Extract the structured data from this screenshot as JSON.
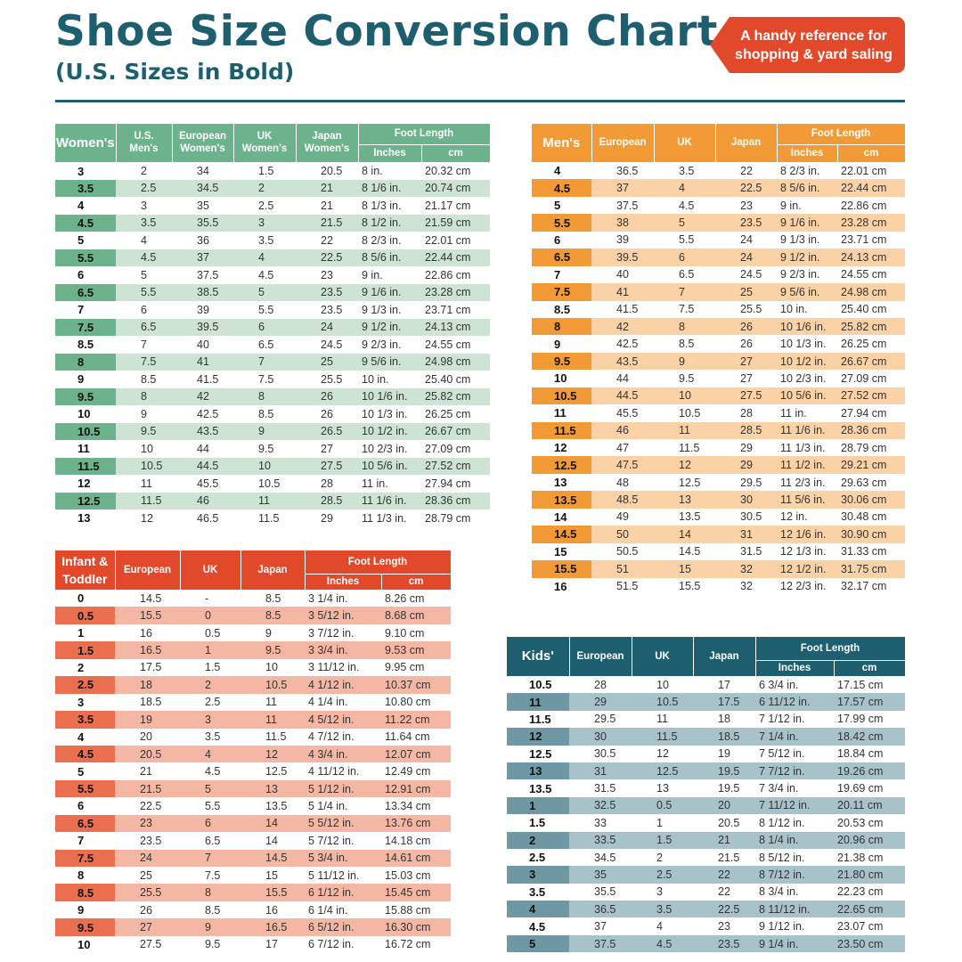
{
  "header": {
    "title": "Shoe Size Conversion Chart",
    "subtitle": "(U.S. Sizes in Bold)",
    "badge_line1": "A handy reference for",
    "badge_line2": "shopping & yard saling"
  },
  "colors": {
    "title": "#1d5f6e",
    "women": "#6cb28b",
    "men": "#f29b36",
    "infant": "#e2492b",
    "kids": "#1d5f6e"
  },
  "tables": {
    "women": {
      "headers": {
        "first": "Women's",
        "c1": [
          "U.S.",
          "Men's"
        ],
        "c2": [
          "European",
          "Women's"
        ],
        "c3": [
          "UK",
          "Women's"
        ],
        "c4": [
          "Japan",
          "Women's"
        ],
        "foot": "Foot Length",
        "inches": "Inches",
        "cm": "cm"
      },
      "rows": [
        [
          "3",
          "2",
          "34",
          "1.5",
          "20.5",
          "8 in.",
          "20.32 cm"
        ],
        [
          "3.5",
          "2.5",
          "34.5",
          "2",
          "21",
          "8 1/6 in.",
          "20.74 cm"
        ],
        [
          "4",
          "3",
          "35",
          "2.5",
          "21",
          "8 1/3 in.",
          "21.17 cm"
        ],
        [
          "4.5",
          "3.5",
          "35.5",
          "3",
          "21.5",
          "8 1/2 in.",
          "21.59 cm"
        ],
        [
          "5",
          "4",
          "36",
          "3.5",
          "22",
          "8 2/3 in.",
          "22.01 cm"
        ],
        [
          "5.5",
          "4.5",
          "37",
          "4",
          "22.5",
          "8 5/6 in.",
          "22.44 cm"
        ],
        [
          "6",
          "5",
          "37.5",
          "4.5",
          "23",
          "9 in.",
          "22.86 cm"
        ],
        [
          "6.5",
          "5.5",
          "38.5",
          "5",
          "23.5",
          "9 1/6 in.",
          "23.28 cm"
        ],
        [
          "7",
          "6",
          "39",
          "5.5",
          "23.5",
          "9 1/3 in.",
          "23.71 cm"
        ],
        [
          "7.5",
          "6.5",
          "39.5",
          "6",
          "24",
          "9 1/2 in.",
          "24.13 cm"
        ],
        [
          "8.5",
          "7",
          "40",
          "6.5",
          "24.5",
          "9 2/3 in.",
          "24.55 cm"
        ],
        [
          "8",
          "7.5",
          "41",
          "7",
          "25",
          "9 5/6 in.",
          "24.98 cm"
        ],
        [
          "9",
          "8.5",
          "41.5",
          "7.5",
          "25.5",
          "10 in.",
          "25.40 cm"
        ],
        [
          "9.5",
          "8",
          "42",
          "8",
          "26",
          "10 1/6 in.",
          "25.82 cm"
        ],
        [
          "10",
          "9",
          "42.5",
          "8.5",
          "26",
          "10 1/3 in.",
          "26.25 cm"
        ],
        [
          "10.5",
          "9.5",
          "43.5",
          "9",
          "26.5",
          "10 1/2 in.",
          "26.67 cm"
        ],
        [
          "11",
          "10",
          "44",
          "9.5",
          "27",
          "10 2/3 in.",
          "27.09 cm"
        ],
        [
          "11.5",
          "10.5",
          "44.5",
          "10",
          "27.5",
          "10 5/6 in.",
          "27.52 cm"
        ],
        [
          "12",
          "11",
          "45.5",
          "10.5",
          "28",
          "11 in.",
          "27.94 cm"
        ],
        [
          "12.5",
          "11.5",
          "46",
          "11",
          "28.5",
          "11 1/6 in.",
          "28.36 cm"
        ],
        [
          "13",
          "12",
          "46.5",
          "11.5",
          "29",
          "11 1/3 in.",
          "28.79 cm"
        ]
      ]
    },
    "men": {
      "headers": {
        "first": "Men's",
        "c1": "European",
        "c2": "UK",
        "c3": "Japan",
        "foot": "Foot Length",
        "inches": "Inches",
        "cm": "cm"
      },
      "rows": [
        [
          "4",
          "36.5",
          "3.5",
          "22",
          "8 2/3 in.",
          "22.01 cm"
        ],
        [
          "4.5",
          "37",
          "4",
          "22.5",
          "8 5/6 in.",
          "22.44 cm"
        ],
        [
          "5",
          "37.5",
          "4.5",
          "23",
          "9 in.",
          "22.86 cm"
        ],
        [
          "5.5",
          "38",
          "5",
          "23.5",
          "9 1/6 in.",
          "23.28 cm"
        ],
        [
          "6",
          "39",
          "5.5",
          "24",
          "9 1/3 in.",
          "23.71 cm"
        ],
        [
          "6.5",
          "39.5",
          "6",
          "24",
          "9 1/2 in.",
          "24.13 cm"
        ],
        [
          "7",
          "40",
          "6.5",
          "24.5",
          "9 2/3 in.",
          "24.55 cm"
        ],
        [
          "7.5",
          "41",
          "7",
          "25",
          "9 5/6 in.",
          "24.98 cm"
        ],
        [
          "8.5",
          "41.5",
          "7.5",
          "25.5",
          "10 in.",
          "25.40 cm"
        ],
        [
          "8",
          "42",
          "8",
          "26",
          "10 1/6 in.",
          "25.82 cm"
        ],
        [
          "9",
          "42.5",
          "8.5",
          "26",
          "10 1/3 in.",
          "26.25 cm"
        ],
        [
          "9.5",
          "43.5",
          "9",
          "27",
          "10 1/2 in.",
          "26.67 cm"
        ],
        [
          "10",
          "44",
          "9.5",
          "27",
          "10 2/3 in.",
          "27.09 cm"
        ],
        [
          "10.5",
          "44.5",
          "10",
          "27.5",
          "10 5/6 in.",
          "27.52 cm"
        ],
        [
          "11",
          "45.5",
          "10.5",
          "28",
          "11 in.",
          "27.94 cm"
        ],
        [
          "11.5",
          "46",
          "11",
          "28.5",
          "11 1/6 in.",
          "28.36 cm"
        ],
        [
          "12",
          "47",
          "11.5",
          "29",
          "11 1/3 in.",
          "28.79 cm"
        ],
        [
          "12.5",
          "47.5",
          "12",
          "29",
          "11 1/2 in.",
          "29.21 cm"
        ],
        [
          "13",
          "48",
          "12.5",
          "29.5",
          "11 2/3 in.",
          "29.63 cm"
        ],
        [
          "13.5",
          "48.5",
          "13",
          "30",
          "11 5/6 in.",
          "30.06 cm"
        ],
        [
          "14",
          "49",
          "13.5",
          "30.5",
          "12 in.",
          "30.48 cm"
        ],
        [
          "14.5",
          "50",
          "14",
          "31",
          "12 1/6 in.",
          "30.90 cm"
        ],
        [
          "15",
          "50.5",
          "14.5",
          "31.5",
          "12 1/3 in.",
          "31.33 cm"
        ],
        [
          "15.5",
          "51",
          "15",
          "32",
          "12 1/2 in.",
          "31.75 cm"
        ],
        [
          "16",
          "51.5",
          "15.5",
          "32",
          "12 2/3 in.",
          "32.17 cm"
        ]
      ]
    },
    "infant": {
      "headers": {
        "first": [
          "Infant &",
          "Toddler"
        ],
        "c1": "European",
        "c2": "UK",
        "c3": "Japan",
        "foot": "Foot Length",
        "inches": "Inches",
        "cm": "cm"
      },
      "rows": [
        [
          "0",
          "14.5",
          "-",
          "8.5",
          "3 1/4 in.",
          "8.26 cm"
        ],
        [
          "0.5",
          "15.5",
          "0",
          "8.5",
          "3 5/12 in.",
          "8.68 cm"
        ],
        [
          "1",
          "16",
          "0.5",
          "9",
          "3 7/12 in.",
          "9.10 cm"
        ],
        [
          "1.5",
          "16.5",
          "1",
          "9.5",
          "3 3/4 in.",
          "9.53 cm"
        ],
        [
          "2",
          "17.5",
          "1.5",
          "10",
          "3 11/12 in.",
          "9.95 cm"
        ],
        [
          "2.5",
          "18",
          "2",
          "10.5",
          "4 1/12 in.",
          "10.37 cm"
        ],
        [
          "3",
          "18.5",
          "2.5",
          "11",
          "4 1/4 in.",
          "10.80 cm"
        ],
        [
          "3.5",
          "19",
          "3",
          "11",
          "4 5/12 in.",
          "11.22 cm"
        ],
        [
          "4",
          "20",
          "3.5",
          "11.5",
          "4 7/12 in.",
          "11.64 cm"
        ],
        [
          "4.5",
          "20.5",
          "4",
          "12",
          "4 3/4 in.",
          "12.07 cm"
        ],
        [
          "5",
          "21",
          "4.5",
          "12.5",
          "4 11/12 in.",
          "12.49 cm"
        ],
        [
          "5.5",
          "21.5",
          "5",
          "13",
          "5 1/12 in.",
          "12.91 cm"
        ],
        [
          "6",
          "22.5",
          "5.5",
          "13.5",
          "5 1/4 in.",
          "13.34 cm"
        ],
        [
          "6.5",
          "23",
          "6",
          "14",
          "5 5/12 in.",
          "13.76 cm"
        ],
        [
          "7",
          "23.5",
          "6.5",
          "14",
          "5 7/12 in.",
          "14.18 cm"
        ],
        [
          "7.5",
          "24",
          "7",
          "14.5",
          "5 3/4 in.",
          "14.61 cm"
        ],
        [
          "8",
          "25",
          "7.5",
          "15",
          "5 11/12 in.",
          "15.03 cm"
        ],
        [
          "8.5",
          "25.5",
          "8",
          "15.5",
          "6 1/12 in.",
          "15.45 cm"
        ],
        [
          "9",
          "26",
          "8.5",
          "16",
          "6 1/4 in.",
          "15.88 cm"
        ],
        [
          "9.5",
          "27",
          "9",
          "16.5",
          "6 5/12 in.",
          "16.30 cm"
        ],
        [
          "10",
          "27.5",
          "9.5",
          "17",
          "6 7/12 in.",
          "16.72 cm"
        ]
      ]
    },
    "kids": {
      "headers": {
        "first": "Kids'",
        "c1": "European",
        "c2": "UK",
        "c3": "Japan",
        "foot": "Foot Length",
        "inches": "Inches",
        "cm": "cm"
      },
      "rows": [
        [
          "10.5",
          "28",
          "10",
          "17",
          "6 3/4 in.",
          "17.15 cm"
        ],
        [
          "11",
          "29",
          "10.5",
          "17.5",
          "6 11/12 in.",
          "17.57 cm"
        ],
        [
          "11.5",
          "29.5",
          "11",
          "18",
          "7 1/12 in.",
          "17.99 cm"
        ],
        [
          "12",
          "30",
          "11.5",
          "18.5",
          "7 1/4 in.",
          "18.42 cm"
        ],
        [
          "12.5",
          "30.5",
          "12",
          "19",
          "7 5/12 in.",
          "18.84 cm"
        ],
        [
          "13",
          "31",
          "12.5",
          "19.5",
          "7 7/12 in.",
          "19.26 cm"
        ],
        [
          "13.5",
          "31.5",
          "13",
          "19.5",
          "7 3/4 in.",
          "19.69 cm"
        ],
        [
          "1",
          "32.5",
          "0.5",
          "20",
          "7 11/12 in.",
          "20.11 cm"
        ],
        [
          "1.5",
          "33",
          "1",
          "20.5",
          "8 1/12 in.",
          "20.53 cm"
        ],
        [
          "2",
          "33.5",
          "1.5",
          "21",
          "8 1/4 in.",
          "20.96 cm"
        ],
        [
          "2.5",
          "34.5",
          "2",
          "21.5",
          "8 5/12 in.",
          "21.38 cm"
        ],
        [
          "3",
          "35",
          "2.5",
          "22",
          "8 7/12 in.",
          "21.80 cm"
        ],
        [
          "3.5",
          "35.5",
          "3",
          "22",
          "8 3/4 in.",
          "22.23 cm"
        ],
        [
          "4",
          "36.5",
          "3.5",
          "22.5",
          "8 11/12 in.",
          "22.65 cm"
        ],
        [
          "4.5",
          "37",
          "4",
          "23",
          "9 1/12 in.",
          "23.07 cm"
        ],
        [
          "5",
          "37.5",
          "4.5",
          "23.5",
          "9 1/4 in.",
          "23.50 cm"
        ]
      ]
    }
  }
}
